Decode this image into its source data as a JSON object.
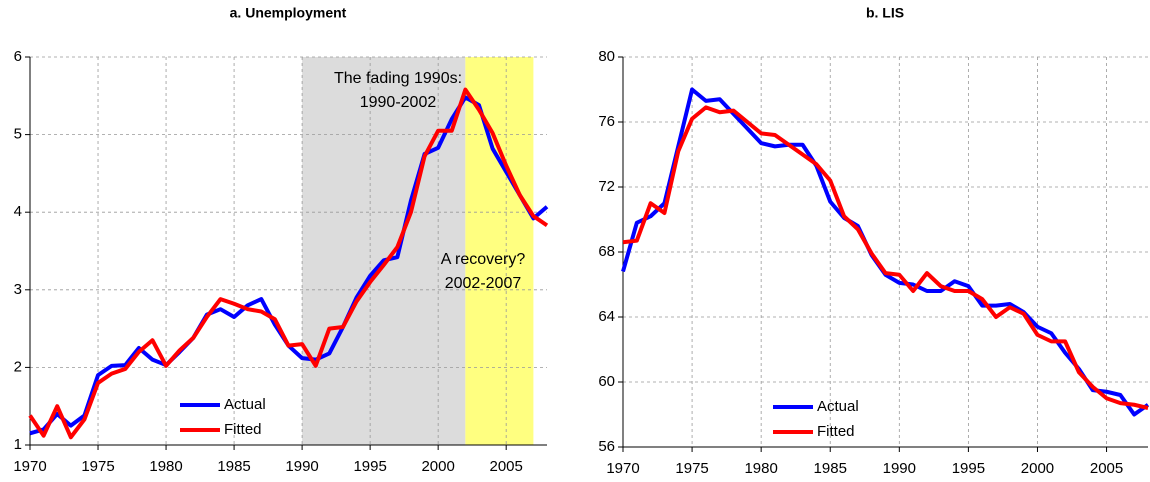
{
  "chart_data": [
    {
      "type": "line",
      "title": "a. Unemployment",
      "x": [
        1970,
        1971,
        1972,
        1973,
        1974,
        1975,
        1976,
        1977,
        1978,
        1979,
        1980,
        1981,
        1982,
        1983,
        1984,
        1985,
        1986,
        1987,
        1988,
        1989,
        1990,
        1991,
        1992,
        1993,
        1994,
        1995,
        1996,
        1997,
        1998,
        1999,
        2000,
        2001,
        2002,
        2003,
        2004,
        2005,
        2006,
        2007,
        2008
      ],
      "series": [
        {
          "name": "Actual",
          "color": "#0000ff",
          "values": [
            1.15,
            1.2,
            1.4,
            1.25,
            1.38,
            1.9,
            2.02,
            2.03,
            2.25,
            2.1,
            2.03,
            2.2,
            2.38,
            2.68,
            2.75,
            2.65,
            2.8,
            2.88,
            2.55,
            2.28,
            2.12,
            2.1,
            2.18,
            2.52,
            2.9,
            3.18,
            3.38,
            3.42,
            4.15,
            4.75,
            4.83,
            5.2,
            5.48,
            5.38,
            4.82,
            4.52,
            4.22,
            3.92,
            4.07
          ]
        },
        {
          "name": "Fitted",
          "color": "#ff0000",
          "values": [
            1.38,
            1.12,
            1.5,
            1.1,
            1.33,
            1.8,
            1.92,
            1.98,
            2.2,
            2.35,
            2.02,
            2.22,
            2.38,
            2.65,
            2.88,
            2.82,
            2.75,
            2.72,
            2.62,
            2.28,
            2.3,
            2.02,
            2.5,
            2.52,
            2.85,
            3.1,
            3.32,
            3.55,
            4.0,
            4.72,
            5.05,
            5.05,
            5.58,
            5.32,
            5.02,
            4.6,
            4.22,
            3.95,
            3.83
          ]
        }
      ],
      "shaded_regions": [
        {
          "start": 1990,
          "end": 2002,
          "color": "#dcdcdc"
        },
        {
          "start": 2002,
          "end": 2007,
          "color": "#ffff80"
        }
      ],
      "annotations": [
        [
          "The fading 1990s:",
          "1990-2002"
        ],
        [
          "A recovery?",
          "2002-2007"
        ]
      ],
      "xlim": [
        1970,
        2008
      ],
      "xticks": [
        1970,
        1975,
        1980,
        1985,
        1990,
        1995,
        2000,
        2005
      ],
      "ylim": [
        1,
        6
      ],
      "yticks": [
        1,
        2,
        3,
        4,
        5,
        6
      ],
      "grid": true,
      "legend": "lower-left"
    },
    {
      "type": "line",
      "title": "b. LIS",
      "x": [
        1970,
        1971,
        1972,
        1973,
        1974,
        1975,
        1976,
        1977,
        1978,
        1979,
        1980,
        1981,
        1982,
        1983,
        1984,
        1985,
        1986,
        1987,
        1988,
        1989,
        1990,
        1991,
        1992,
        1993,
        1994,
        1995,
        1996,
        1997,
        1998,
        1999,
        2000,
        2001,
        2002,
        2003,
        2004,
        2005,
        2006,
        2007,
        2008
      ],
      "series": [
        {
          "name": "Actual",
          "color": "#0000ff",
          "values": [
            66.8,
            69.8,
            70.2,
            71.0,
            74.5,
            78.0,
            77.3,
            77.4,
            76.5,
            75.6,
            74.7,
            74.5,
            74.6,
            74.6,
            73.3,
            71.1,
            70.1,
            69.6,
            67.8,
            66.6,
            66.1,
            66.0,
            65.6,
            65.6,
            66.2,
            65.9,
            64.7,
            64.7,
            64.8,
            64.3,
            63.4,
            63.0,
            61.8,
            60.8,
            59.5,
            59.4,
            59.2,
            58.0,
            58.6
          ]
        },
        {
          "name": "Fitted",
          "color": "#ff0000",
          "values": [
            68.6,
            68.7,
            71.0,
            70.4,
            74.2,
            76.2,
            76.9,
            76.6,
            76.7,
            76.0,
            75.3,
            75.2,
            74.6,
            74.0,
            73.4,
            72.4,
            70.2,
            69.4,
            67.9,
            66.7,
            66.6,
            65.6,
            66.7,
            65.9,
            65.6,
            65.6,
            65.1,
            64.0,
            64.6,
            64.2,
            62.9,
            62.5,
            62.5,
            60.6,
            59.7,
            59.0,
            58.7,
            58.6,
            58.4
          ]
        }
      ],
      "xlim": [
        1970,
        2008
      ],
      "xticks": [
        1970,
        1975,
        1980,
        1985,
        1990,
        1995,
        2000,
        2005
      ],
      "ylim": [
        56,
        80
      ],
      "yticks": [
        56,
        60,
        64,
        68,
        72,
        76,
        80
      ],
      "grid": true,
      "legend": "lower-left"
    }
  ]
}
